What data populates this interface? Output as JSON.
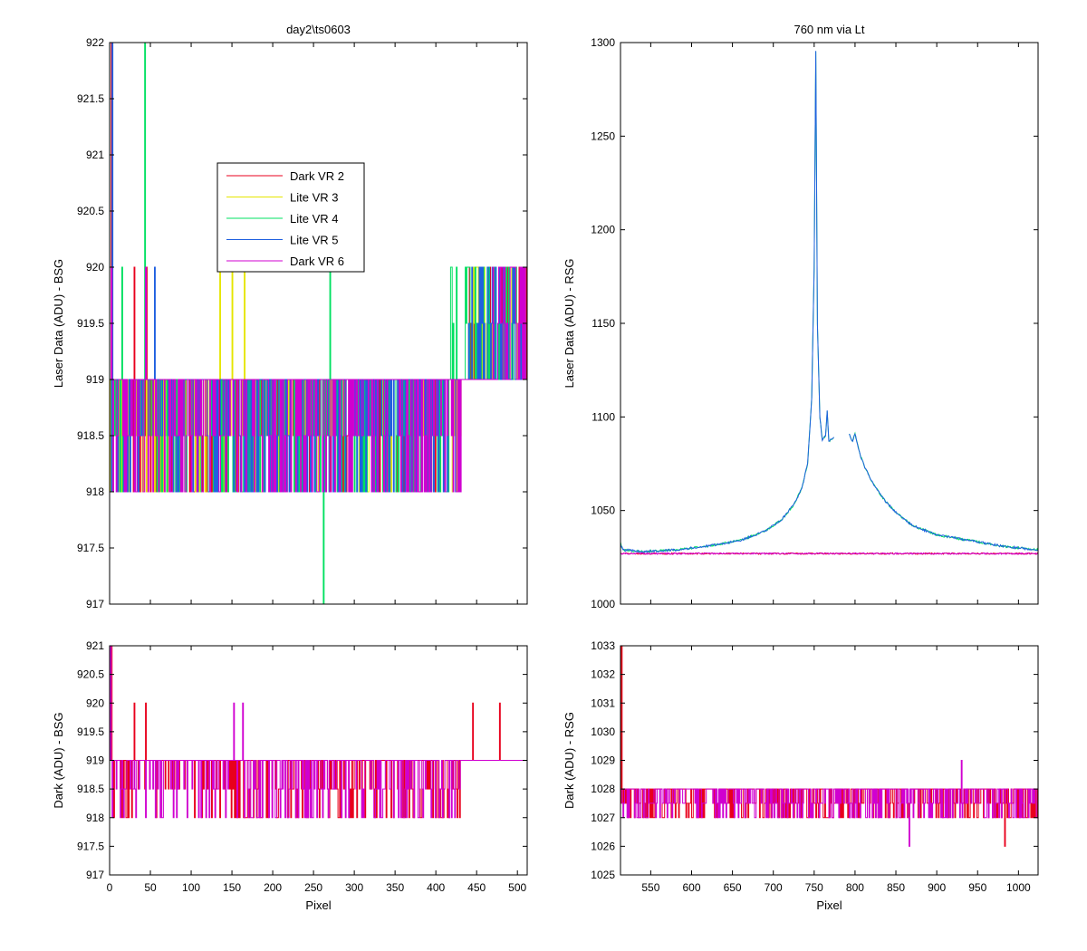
{
  "chart_data": [
    {
      "id": "top-left",
      "type": "line",
      "title": "day2\\ts0603",
      "xlabel": "",
      "ylabel": "Laser Data (ADU) - BSG",
      "xlim": [
        0,
        512
      ],
      "ylim": [
        917,
        922
      ],
      "xticks": [],
      "yticks": [
        "917",
        "917.5",
        "918",
        "918.5",
        "919",
        "919.5",
        "920",
        "920.5",
        "921",
        "921.5",
        "922"
      ],
      "legend": {
        "placement": "upper-center",
        "entries": [
          {
            "name": "Dark VR 2",
            "color": "#e8001c"
          },
          {
            "name": "Lite VR 3",
            "color": "#e6e600"
          },
          {
            "name": "Lite VR 4",
            "color": "#00e060"
          },
          {
            "name": "Lite VR 5",
            "color": "#2060e0"
          },
          {
            "name": "Dark VR 6",
            "color": "#d000d0"
          }
        ]
      },
      "series": [
        {
          "color": "#e8001c",
          "baseline": 919,
          "low": 918,
          "high": 920,
          "lowStart": 0,
          "lowEnd": 430,
          "highStart": 440,
          "highEnd": 512,
          "density": 0.3,
          "spikes": [
            [
              2,
              922
            ],
            [
              30,
              920
            ],
            [
              45,
              920
            ]
          ]
        },
        {
          "color": "#e6e600",
          "baseline": 919,
          "low": 918,
          "high": 920,
          "lowStart": 0,
          "lowEnd": 430,
          "highStart": 440,
          "highEnd": 512,
          "density": 0.3,
          "spikes": [
            [
              135,
              920
            ],
            [
              150,
              920
            ],
            [
              165,
              920
            ]
          ]
        },
        {
          "color": "#00e060",
          "baseline": 919,
          "low": 918,
          "high": 920,
          "lowStart": 0,
          "lowEnd": 430,
          "highStart": 410,
          "highEnd": 512,
          "density": 0.3,
          "spikes": [
            [
              15,
              920
            ],
            [
              43,
              922
            ],
            [
              262,
              917
            ],
            [
              270,
              920
            ]
          ]
        },
        {
          "color": "#2060e0",
          "baseline": 919,
          "low": 918,
          "high": 920,
          "lowStart": 0,
          "lowEnd": 430,
          "highStart": 440,
          "highEnd": 512,
          "density": 0.3,
          "spikes": [
            [
              3,
              922
            ],
            [
              55,
              920
            ]
          ]
        },
        {
          "color": "#d000d0",
          "baseline": 919,
          "low": 918,
          "high": 920,
          "lowStart": 0,
          "lowEnd": 430,
          "highStart": 470,
          "highEnd": 512,
          "density": 0.4,
          "spikes": [
            [
              2,
              920
            ],
            [
              44,
              920
            ]
          ]
        }
      ]
    },
    {
      "id": "top-right",
      "type": "line",
      "title": "760 nm via Lt",
      "xlabel": "",
      "ylabel": "Laser Data (ADU) - RSG",
      "xlim": [
        513,
        1024
      ],
      "ylim": [
        1000,
        1300
      ],
      "xticks": [],
      "yticks": [
        "1000",
        "1050",
        "1100",
        "1150",
        "1200",
        "1250",
        "1300"
      ],
      "series": [
        {
          "color": "#00e060",
          "peak": {
            "x": 752,
            "y": 1295
          },
          "gap": [
            775,
            793
          ],
          "points": [
            [
              513,
              1033
            ],
            [
              516,
              1029
            ],
            [
              540,
              1028
            ],
            [
              580,
              1029
            ],
            [
              620,
              1031
            ],
            [
              660,
              1034
            ],
            [
              690,
              1039
            ],
            [
              710,
              1045
            ],
            [
              725,
              1053
            ],
            [
              735,
              1062
            ],
            [
              742,
              1075
            ],
            [
              747,
              1110
            ],
            [
              750,
              1180
            ],
            [
              752,
              1295
            ],
            [
              754,
              1150
            ],
            [
              757,
              1100
            ],
            [
              760,
              1088
            ],
            [
              764,
              1090
            ],
            [
              766,
              1103
            ],
            [
              768,
              1087
            ],
            [
              775,
              1089
            ],
            [
              793,
              1091
            ],
            [
              797,
              1087
            ],
            [
              800,
              1091
            ],
            [
              806,
              1080
            ],
            [
              812,
              1073
            ],
            [
              820,
              1066
            ],
            [
              835,
              1056
            ],
            [
              850,
              1049
            ],
            [
              870,
              1042
            ],
            [
              900,
              1037
            ],
            [
              940,
              1034
            ],
            [
              980,
              1031
            ],
            [
              1000,
              1030
            ],
            [
              1024,
              1029
            ]
          ]
        },
        {
          "color": "#2060e0",
          "peak": {
            "x": 752,
            "y": 1295
          },
          "gap": [
            775,
            793
          ],
          "points": [
            [
              513,
              1032
            ],
            [
              516,
              1029
            ],
            [
              540,
              1028
            ],
            [
              580,
              1029
            ],
            [
              620,
              1031
            ],
            [
              660,
              1034
            ],
            [
              690,
              1039
            ],
            [
              710,
              1045
            ],
            [
              725,
              1053
            ],
            [
              735,
              1062
            ],
            [
              742,
              1075
            ],
            [
              747,
              1110
            ],
            [
              750,
              1180
            ],
            [
              752,
              1295
            ],
            [
              754,
              1150
            ],
            [
              757,
              1100
            ],
            [
              760,
              1087
            ],
            [
              764,
              1090
            ],
            [
              766,
              1103
            ],
            [
              768,
              1087
            ],
            [
              775,
              1089
            ],
            [
              793,
              1091
            ],
            [
              797,
              1087
            ],
            [
              800,
              1091
            ],
            [
              806,
              1080
            ],
            [
              812,
              1073
            ],
            [
              820,
              1066
            ],
            [
              835,
              1056
            ],
            [
              850,
              1049
            ],
            [
              870,
              1042
            ],
            [
              900,
              1037
            ],
            [
              940,
              1034
            ],
            [
              980,
              1031
            ],
            [
              1000,
              1030
            ],
            [
              1024,
              1029
            ]
          ]
        },
        {
          "color": "#e8001c",
          "flat": 1027,
          "jitter": 1
        },
        {
          "color": "#d000d0",
          "flat": 1027,
          "jitter": 1
        }
      ]
    },
    {
      "id": "bottom-left",
      "type": "line",
      "title": "",
      "xlabel": "Pixel",
      "ylabel": "Dark (ADU) - BSG",
      "xlim": [
        0,
        512
      ],
      "ylim": [
        917,
        921
      ],
      "xticks": [
        "0",
        "50",
        "100",
        "150",
        "200",
        "250",
        "300",
        "350",
        "400",
        "450",
        "500"
      ],
      "yticks": [
        "917",
        "917.5",
        "918",
        "918.5",
        "919",
        "919.5",
        "920",
        "920.5",
        "921"
      ],
      "series": [
        {
          "color": "#e8001c",
          "baseline": 919,
          "low": 918,
          "high": 920,
          "lowStart": 0,
          "lowEnd": 430,
          "density": 0.35,
          "spikes": [
            [
              2,
              921
            ],
            [
              30,
              920
            ],
            [
              44,
              920
            ],
            [
              445,
              920
            ],
            [
              478,
              920
            ]
          ]
        },
        {
          "color": "#d000d0",
          "baseline": 919,
          "low": 918,
          "high": 920,
          "lowStart": 0,
          "lowEnd": 430,
          "density": 0.35,
          "spikes": [
            [
              1,
              921
            ],
            [
              152,
              920
            ],
            [
              163,
              920
            ]
          ]
        }
      ]
    },
    {
      "id": "bottom-right",
      "type": "line",
      "title": "",
      "xlabel": "Pixel",
      "ylabel": "Dark (ADU) - RSG",
      "xlim": [
        513,
        1024
      ],
      "ylim": [
        1025,
        1033
      ],
      "xticks": [
        "550",
        "600",
        "650",
        "700",
        "750",
        "800",
        "850",
        "900",
        "950",
        "1000"
      ],
      "yticks": [
        "1025",
        "1026",
        "1027",
        "1028",
        "1029",
        "1030",
        "1031",
        "1032",
        "1033"
      ],
      "series": [
        {
          "color": "#e8001c",
          "baseline": 1028,
          "low": 1027,
          "lowStart": 513,
          "lowEnd": 1024,
          "density": 0.45,
          "spikes": [
            [
              514,
              1033
            ],
            [
              983,
              1026
            ]
          ]
        },
        {
          "color": "#d000d0",
          "baseline": 1028,
          "low": 1027,
          "lowStart": 513,
          "lowEnd": 1024,
          "density": 0.45,
          "spikes": [
            [
              866,
              1026
            ],
            [
              930,
              1029
            ]
          ]
        }
      ]
    }
  ]
}
